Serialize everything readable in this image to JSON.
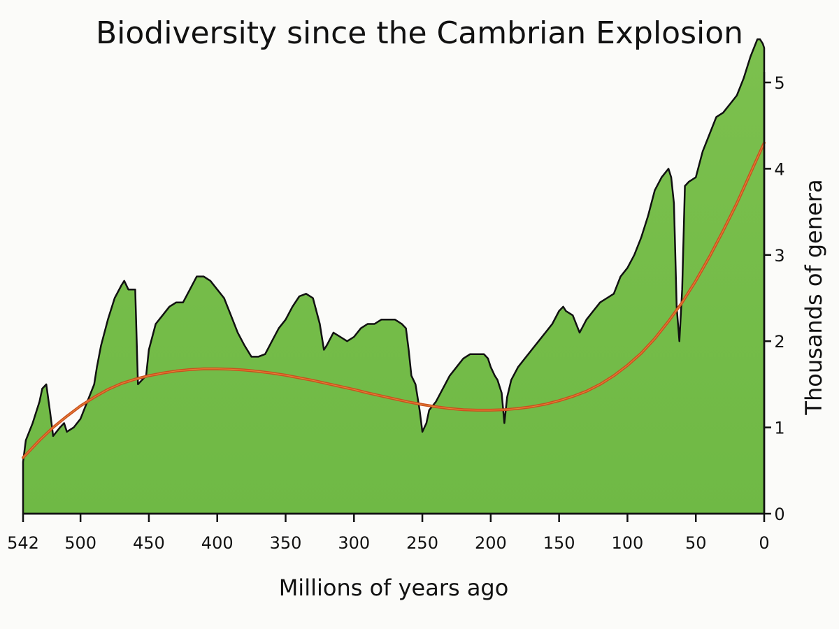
{
  "chart_data": {
    "type": "area",
    "title": "Biodiversity since the Cambrian Explosion",
    "xlabel": "Millions of years ago",
    "ylabel": "Thousands of genera",
    "x_reversed": true,
    "xlim": [
      542,
      0
    ],
    "ylim": [
      0,
      5.5
    ],
    "x_ticks": [
      542,
      500,
      450,
      400,
      350,
      300,
      250,
      200,
      150,
      100,
      50,
      0
    ],
    "y_ticks": [
      0,
      1,
      2,
      3,
      4,
      5
    ],
    "grid": false,
    "legend": "none",
    "colors": {
      "area_fill": "#7cc04e",
      "area_stroke": "#111111",
      "trend": "#c8501e"
    },
    "series": [
      {
        "kind": "area",
        "x": [
          542,
          540,
          535,
          530,
          528,
          525,
          522,
          520,
          515,
          512,
          510,
          505,
          500,
          495,
          490,
          488,
          485,
          480,
          475,
          470,
          468,
          465,
          460,
          458,
          455,
          452,
          450,
          445,
          440,
          435,
          430,
          425,
          420,
          415,
          410,
          405,
          400,
          395,
          390,
          385,
          380,
          375,
          370,
          365,
          360,
          355,
          350,
          345,
          340,
          335,
          330,
          325,
          322,
          320,
          315,
          310,
          305,
          300,
          295,
          290,
          285,
          280,
          275,
          270,
          265,
          262,
          260,
          258,
          255,
          252,
          250,
          247,
          245,
          240,
          235,
          230,
          225,
          220,
          215,
          210,
          205,
          202,
          200,
          197,
          195,
          192,
          190,
          188,
          185,
          180,
          175,
          170,
          165,
          160,
          155,
          150,
          147,
          145,
          140,
          135,
          130,
          125,
          120,
          115,
          110,
          105,
          100,
          95,
          90,
          85,
          80,
          75,
          70,
          68,
          66,
          65,
          64,
          62,
          60,
          58,
          55,
          50,
          45,
          40,
          35,
          30,
          25,
          20,
          15,
          10,
          5,
          3,
          1,
          0
        ],
        "y": [
          0.6,
          0.85,
          1.05,
          1.3,
          1.45,
          1.5,
          1.15,
          0.9,
          1.0,
          1.05,
          0.95,
          1.0,
          1.1,
          1.3,
          1.5,
          1.7,
          1.95,
          2.25,
          2.5,
          2.65,
          2.7,
          2.6,
          2.6,
          1.5,
          1.55,
          1.6,
          1.9,
          2.2,
          2.3,
          2.4,
          2.45,
          2.45,
          2.6,
          2.75,
          2.75,
          2.7,
          2.6,
          2.5,
          2.3,
          2.1,
          1.95,
          1.82,
          1.82,
          1.85,
          2.0,
          2.15,
          2.25,
          2.4,
          2.52,
          2.55,
          2.5,
          2.2,
          1.9,
          1.95,
          2.1,
          2.05,
          2.0,
          2.05,
          2.15,
          2.2,
          2.2,
          2.25,
          2.25,
          2.25,
          2.2,
          2.15,
          1.9,
          1.6,
          1.5,
          1.2,
          0.95,
          1.05,
          1.2,
          1.3,
          1.45,
          1.6,
          1.7,
          1.8,
          1.85,
          1.85,
          1.85,
          1.8,
          1.7,
          1.6,
          1.55,
          1.4,
          1.05,
          1.35,
          1.55,
          1.7,
          1.8,
          1.9,
          2.0,
          2.1,
          2.2,
          2.35,
          2.4,
          2.35,
          2.3,
          2.1,
          2.25,
          2.35,
          2.45,
          2.5,
          2.55,
          2.75,
          2.85,
          3.0,
          3.2,
          3.45,
          3.75,
          3.9,
          4.0,
          3.9,
          3.6,
          3.0,
          2.4,
          2.0,
          2.6,
          3.8,
          3.85,
          3.9,
          4.2,
          4.4,
          4.6,
          4.65,
          4.75,
          4.85,
          5.05,
          5.3,
          5.5,
          5.5,
          5.45,
          5.4
        ]
      },
      {
        "kind": "trend",
        "x": [
          542,
          530,
          520,
          510,
          500,
          490,
          480,
          470,
          460,
          450,
          440,
          430,
          420,
          410,
          400,
          390,
          380,
          370,
          360,
          350,
          340,
          330,
          320,
          310,
          300,
          290,
          280,
          270,
          260,
          250,
          240,
          230,
          220,
          210,
          200,
          190,
          180,
          170,
          160,
          150,
          140,
          130,
          120,
          110,
          100,
          90,
          80,
          70,
          60,
          50,
          40,
          30,
          20,
          10,
          0
        ],
        "y": [
          0.65,
          0.85,
          1.0,
          1.13,
          1.25,
          1.35,
          1.44,
          1.51,
          1.56,
          1.6,
          1.63,
          1.655,
          1.67,
          1.68,
          1.68,
          1.675,
          1.665,
          1.65,
          1.63,
          1.605,
          1.575,
          1.545,
          1.51,
          1.475,
          1.44,
          1.4,
          1.365,
          1.33,
          1.295,
          1.265,
          1.24,
          1.22,
          1.205,
          1.2,
          1.2,
          1.205,
          1.22,
          1.24,
          1.27,
          1.31,
          1.36,
          1.42,
          1.5,
          1.6,
          1.72,
          1.86,
          2.03,
          2.23,
          2.45,
          2.7,
          2.98,
          3.28,
          3.6,
          3.95,
          4.3
        ]
      }
    ]
  }
}
